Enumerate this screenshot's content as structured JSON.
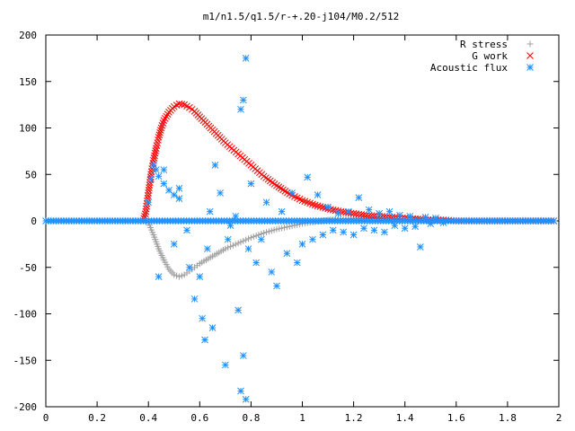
{
  "chart_data": {
    "type": "scatter",
    "title": "m1/n1.5/q1.5/r-+.20-j104/M0.2/512",
    "xlabel": "",
    "ylabel": "",
    "xlim": [
      0,
      2
    ],
    "ylim": [
      -200,
      200
    ],
    "xticks": [
      "0",
      "0.2",
      "0.4",
      "0.6",
      "0.8",
      "1",
      "1.2",
      "1.4",
      "1.6",
      "1.8",
      "2"
    ],
    "yticks": [
      "200",
      "150",
      "100",
      "50",
      "0",
      "-50",
      "-100",
      "-150",
      "-200"
    ],
    "grid": false,
    "legend_position": "top-right",
    "series": [
      {
        "name": "R stress",
        "marker": "plus",
        "color": "#a0a0a0",
        "points": [
          [
            0.0,
            0
          ],
          [
            0.1,
            0
          ],
          [
            0.2,
            0
          ],
          [
            0.3,
            0
          ],
          [
            0.38,
            0
          ],
          [
            0.4,
            -2
          ],
          [
            0.42,
            -15
          ],
          [
            0.44,
            -30
          ],
          [
            0.46,
            -42
          ],
          [
            0.48,
            -52
          ],
          [
            0.5,
            -58
          ],
          [
            0.52,
            -60
          ],
          [
            0.54,
            -58
          ],
          [
            0.56,
            -54
          ],
          [
            0.58,
            -50
          ],
          [
            0.6,
            -46
          ],
          [
            0.65,
            -38
          ],
          [
            0.7,
            -30
          ],
          [
            0.75,
            -24
          ],
          [
            0.8,
            -18
          ],
          [
            0.85,
            -13
          ],
          [
            0.9,
            -9
          ],
          [
            0.95,
            -6
          ],
          [
            1.0,
            -3
          ],
          [
            1.05,
            -1
          ],
          [
            1.1,
            1
          ],
          [
            1.15,
            2
          ],
          [
            1.2,
            3
          ],
          [
            1.25,
            3
          ],
          [
            1.3,
            3
          ],
          [
            1.35,
            2
          ],
          [
            1.4,
            2
          ],
          [
            1.45,
            1
          ],
          [
            1.5,
            1
          ],
          [
            1.55,
            0
          ],
          [
            1.6,
            0
          ],
          [
            1.7,
            0
          ],
          [
            1.8,
            0
          ],
          [
            1.9,
            0
          ],
          [
            1.98,
            0
          ]
        ]
      },
      {
        "name": "G work",
        "marker": "cross",
        "color": "#ff0000",
        "points": [
          [
            0.38,
            0
          ],
          [
            0.39,
            10
          ],
          [
            0.4,
            30
          ],
          [
            0.41,
            50
          ],
          [
            0.42,
            65
          ],
          [
            0.43,
            78
          ],
          [
            0.44,
            90
          ],
          [
            0.45,
            100
          ],
          [
            0.46,
            108
          ],
          [
            0.48,
            117
          ],
          [
            0.5,
            123
          ],
          [
            0.52,
            126
          ],
          [
            0.54,
            125
          ],
          [
            0.56,
            122
          ],
          [
            0.58,
            118
          ],
          [
            0.6,
            112
          ],
          [
            0.65,
            98
          ],
          [
            0.7,
            84
          ],
          [
            0.75,
            72
          ],
          [
            0.8,
            60
          ],
          [
            0.85,
            48
          ],
          [
            0.9,
            38
          ],
          [
            0.95,
            29
          ],
          [
            1.0,
            22
          ],
          [
            1.05,
            17
          ],
          [
            1.1,
            13
          ],
          [
            1.15,
            10
          ],
          [
            1.2,
            8
          ],
          [
            1.25,
            6
          ],
          [
            1.3,
            5
          ],
          [
            1.35,
            4
          ],
          [
            1.4,
            3
          ],
          [
            1.45,
            2
          ],
          [
            1.5,
            1
          ],
          [
            1.55,
            1
          ],
          [
            1.6,
            0
          ],
          [
            1.7,
            0
          ],
          [
            1.8,
            0
          ],
          [
            1.9,
            0
          ],
          [
            1.98,
            0
          ]
        ]
      },
      {
        "name": "Acoustic flux",
        "marker": "star",
        "color": "#1e90ff",
        "points": [
          [
            0.0,
            0
          ],
          [
            0.05,
            0
          ],
          [
            0.1,
            0
          ],
          [
            0.15,
            0
          ],
          [
            0.2,
            0
          ],
          [
            0.25,
            0
          ],
          [
            0.3,
            0
          ],
          [
            0.35,
            0
          ],
          [
            0.38,
            0
          ],
          [
            0.4,
            20
          ],
          [
            0.41,
            45
          ],
          [
            0.42,
            60
          ],
          [
            0.43,
            55
          ],
          [
            0.44,
            48
          ],
          [
            0.46,
            40
          ],
          [
            0.48,
            33
          ],
          [
            0.5,
            28
          ],
          [
            0.52,
            24
          ],
          [
            0.44,
            -60
          ],
          [
            0.46,
            55
          ],
          [
            0.5,
            -25
          ],
          [
            0.52,
            35
          ],
          [
            0.55,
            -10
          ],
          [
            0.56,
            -50
          ],
          [
            0.58,
            -84
          ],
          [
            0.6,
            -60
          ],
          [
            0.61,
            -105
          ],
          [
            0.62,
            -128
          ],
          [
            0.63,
            -30
          ],
          [
            0.64,
            10
          ],
          [
            0.65,
            -115
          ],
          [
            0.66,
            60
          ],
          [
            0.68,
            30
          ],
          [
            0.7,
            -155
          ],
          [
            0.71,
            -20
          ],
          [
            0.72,
            -5
          ],
          [
            0.74,
            5
          ],
          [
            0.75,
            -96
          ],
          [
            0.76,
            -183
          ],
          [
            0.77,
            -145
          ],
          [
            0.78,
            -192
          ],
          [
            0.78,
            175
          ],
          [
            0.77,
            130
          ],
          [
            0.76,
            120
          ],
          [
            0.79,
            -30
          ],
          [
            0.8,
            40
          ],
          [
            0.82,
            -45
          ],
          [
            0.84,
            -20
          ],
          [
            0.86,
            20
          ],
          [
            0.88,
            -55
          ],
          [
            0.9,
            -70
          ],
          [
            0.92,
            10
          ],
          [
            0.94,
            -35
          ],
          [
            0.96,
            30
          ],
          [
            0.98,
            -45
          ],
          [
            1.0,
            -25
          ],
          [
            1.02,
            47
          ],
          [
            1.04,
            -20
          ],
          [
            1.06,
            28
          ],
          [
            1.08,
            -15
          ],
          [
            1.1,
            15
          ],
          [
            1.12,
            -10
          ],
          [
            1.14,
            8
          ],
          [
            1.16,
            -12
          ],
          [
            1.18,
            10
          ],
          [
            1.2,
            -15
          ],
          [
            1.22,
            25
          ],
          [
            1.24,
            -8
          ],
          [
            1.26,
            12
          ],
          [
            1.28,
            -10
          ],
          [
            1.3,
            8
          ],
          [
            1.32,
            -12
          ],
          [
            1.34,
            10
          ],
          [
            1.36,
            -5
          ],
          [
            1.38,
            6
          ],
          [
            1.4,
            -8
          ],
          [
            1.42,
            5
          ],
          [
            1.44,
            -6
          ],
          [
            1.46,
            -28
          ],
          [
            1.48,
            4
          ],
          [
            1.5,
            -3
          ],
          [
            1.52,
            3
          ],
          [
            1.55,
            -2
          ],
          [
            1.6,
            0
          ],
          [
            1.65,
            0
          ],
          [
            1.7,
            0
          ],
          [
            1.75,
            0
          ],
          [
            1.8,
            0
          ],
          [
            1.85,
            0
          ],
          [
            1.9,
            0
          ],
          [
            1.95,
            0
          ],
          [
            1.98,
            0
          ]
        ]
      }
    ]
  }
}
